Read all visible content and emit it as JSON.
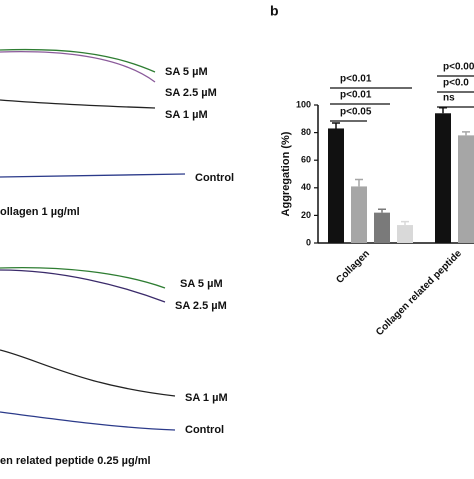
{
  "panel_label": "b",
  "traces": {
    "top": {
      "labels": [
        "SA 5 µM",
        "SA 2.5 µM",
        "SA 1 µM",
        "Control"
      ],
      "caption": "ollagen 1 µg/ml"
    },
    "bottom": {
      "labels": [
        "SA 5 µM",
        "SA 2.5 µM",
        "SA 1 µM",
        "Control"
      ],
      "caption": "en related peptide 0.25 µg/ml"
    }
  },
  "chart_data": {
    "type": "bar",
    "y_label": "Aggregation (%)",
    "categories": [
      "Collagen",
      "Collagen related peptide"
    ],
    "groups": [
      {
        "values": [
          83,
          41,
          22,
          13
        ],
        "errors": [
          4,
          5,
          2.5,
          2.5
        ]
      },
      {
        "values": [
          94,
          78
        ],
        "errors": [
          4,
          2.5
        ]
      }
    ],
    "colors": [
      "#111111",
      "#a6a6a6",
      "#7a7a7a",
      "#d9d9d9"
    ],
    "ylim": [
      0,
      100
    ],
    "yticks": [
      0,
      20,
      40,
      60,
      80,
      100
    ],
    "annotations": [
      {
        "text": "p<0.01"
      },
      {
        "text": "p<0.01"
      },
      {
        "text": "p<0.05"
      },
      {
        "text": "p<0.00"
      },
      {
        "text": "p<0.0"
      },
      {
        "text": "ns"
      }
    ]
  }
}
